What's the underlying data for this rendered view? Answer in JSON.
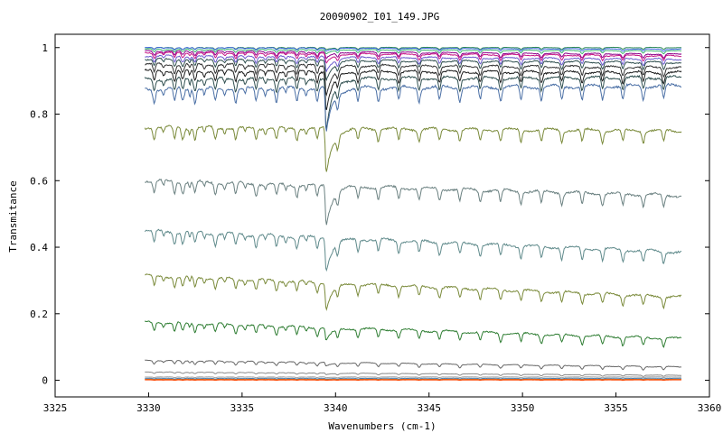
{
  "chart_data": {
    "type": "line",
    "title": "20090902_I01_149.JPG",
    "xlabel": "Wavenumbers (cm-1)",
    "ylabel": "Transmitance",
    "xlim": [
      3325,
      3360
    ],
    "ylim": [
      -0.05,
      1.04
    ],
    "x_range_data": [
      3329.8,
      3358.5
    ],
    "x_ticks": [
      3325,
      3330,
      3335,
      3340,
      3345,
      3350,
      3355,
      3360
    ],
    "y_ticks": [
      0,
      0.2,
      0.4,
      0.6,
      0.8,
      1
    ],
    "x_tick_labels": [
      "3325",
      "3330",
      "3335",
      "3340",
      "3345",
      "3350",
      "3355",
      "3360"
    ],
    "y_tick_labels": [
      "0",
      "0.2",
      "0.4",
      "0.6",
      "0.8",
      "1"
    ],
    "grid": false,
    "legend": "none",
    "main_absorption_line": 3339.5,
    "series": [
      {
        "baseline_start": 1.0,
        "baseline_end": 1.0,
        "line_depth": 0.005,
        "main_depth": 0.005,
        "color": "#2e8b57"
      },
      {
        "baseline_start": 1.0,
        "baseline_end": 0.995,
        "line_depth": 0.006,
        "main_depth": 0.008,
        "color": "#4169e1"
      },
      {
        "baseline_start": 0.995,
        "baseline_end": 0.99,
        "line_depth": 0.008,
        "main_depth": 0.012,
        "color": "#3cb371"
      },
      {
        "baseline_start": 0.99,
        "baseline_end": 0.98,
        "line_depth": 0.012,
        "main_depth": 0.02,
        "color": "#8b008b"
      },
      {
        "baseline_start": 0.985,
        "baseline_end": 0.975,
        "line_depth": 0.015,
        "main_depth": 0.03,
        "color": "#c71585"
      },
      {
        "baseline_start": 0.975,
        "baseline_end": 0.965,
        "line_depth": 0.018,
        "main_depth": 0.045,
        "color": "#6a5acd"
      },
      {
        "baseline_start": 0.965,
        "baseline_end": 0.955,
        "line_depth": 0.02,
        "main_depth": 0.06,
        "color": "#2f4f4f"
      },
      {
        "baseline_start": 0.95,
        "baseline_end": 0.94,
        "line_depth": 0.025,
        "main_depth": 0.09,
        "color": "#333333"
      },
      {
        "baseline_start": 0.93,
        "baseline_end": 0.925,
        "line_depth": 0.03,
        "main_depth": 0.12,
        "color": "#1c1c1c"
      },
      {
        "baseline_start": 0.905,
        "baseline_end": 0.91,
        "line_depth": 0.035,
        "main_depth": 0.16,
        "color": "#2f4f4f"
      },
      {
        "baseline_start": 0.875,
        "baseline_end": 0.885,
        "line_depth": 0.04,
        "main_depth": 0.14,
        "color": "#4a6fa5"
      },
      {
        "baseline_start": 0.76,
        "baseline_end": 0.75,
        "line_depth": 0.035,
        "main_depth": 0.14,
        "color": "#7a8a3a"
      },
      {
        "baseline_start": 0.6,
        "baseline_end": 0.555,
        "line_depth": 0.035,
        "main_depth": 0.12,
        "color": "#6a8080"
      },
      {
        "baseline_start": 0.45,
        "baseline_end": 0.385,
        "line_depth": 0.035,
        "main_depth": 0.1,
        "color": "#5f8a8b"
      },
      {
        "baseline_start": 0.315,
        "baseline_end": 0.25,
        "line_depth": 0.03,
        "main_depth": 0.08,
        "color": "#7a8a3a"
      },
      {
        "baseline_start": 0.175,
        "baseline_end": 0.125,
        "line_depth": 0.025,
        "main_depth": 0.04,
        "color": "#2e7d32"
      },
      {
        "baseline_start": 0.06,
        "baseline_end": 0.04,
        "line_depth": 0.01,
        "main_depth": 0.012,
        "color": "#666666"
      },
      {
        "baseline_start": 0.025,
        "baseline_end": 0.015,
        "line_depth": 0.004,
        "main_depth": 0.005,
        "color": "#888888"
      },
      {
        "baseline_start": 0.01,
        "baseline_end": 0.01,
        "line_depth": 0.002,
        "main_depth": 0.002,
        "color": "#a0a0a0"
      },
      {
        "baseline_start": 0.006,
        "baseline_end": 0.006,
        "line_depth": 0.002,
        "main_depth": 0.002,
        "color": "#4682b4"
      },
      {
        "baseline_start": 0.003,
        "baseline_end": 0.003,
        "line_depth": 0.001,
        "main_depth": 0.001,
        "color": "#d2691e"
      },
      {
        "baseline_start": 0.001,
        "baseline_end": 0.001,
        "line_depth": 0.001,
        "main_depth": 0.001,
        "color": "#ff4500"
      }
    ]
  }
}
